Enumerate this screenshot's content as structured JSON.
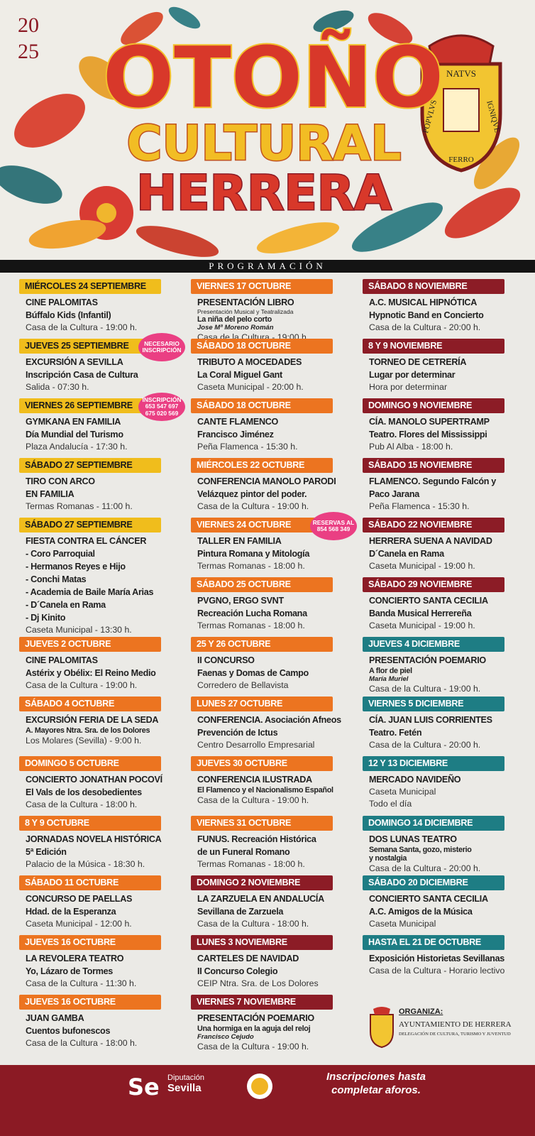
{
  "header": {
    "year": [
      "20",
      "25"
    ],
    "title": [
      "OTOÑO",
      "CULTURAL",
      "HERRERA"
    ],
    "motto": [
      "NATVS",
      "IGNIQVE",
      "FERRO",
      "POPVLVS"
    ]
  },
  "banner": "PROGRAMACIÓN",
  "palette": {
    "yellow": "#f0bd1c",
    "orange": "#ec7420",
    "red": "#8c1c26",
    "teal": "#1e7d84"
  },
  "columns": [
    [
      {
        "date": "MIÉRCOLES 24 SEPTIEMBRE",
        "color": "yellow",
        "lines": [
          {
            "text": "CINE PALOMITAS",
            "style": "b"
          },
          {
            "text": "Búffalo Kids (Infantil)",
            "style": "b"
          },
          {
            "text": "Casa de la Cultura - 19:00 h.",
            "style": "n"
          }
        ]
      },
      {
        "date": "JUEVES 25 SEPTIEMBRE",
        "color": "yellow",
        "badge": [
          "NECESARIO",
          "INSCRIPCIÓN"
        ],
        "lines": [
          {
            "text": "EXCURSIÓN A SEVILLA",
            "style": "b"
          },
          {
            "text": "Inscripción Casa de Cultura",
            "style": "b"
          },
          {
            "text": "Salida - 07:30 h.",
            "style": "n"
          }
        ]
      },
      {
        "date": "VIERNES 26 SEPTIEMBRE",
        "color": "yellow",
        "badge": [
          "INSCRIPCIÓN",
          "653 547 697",
          "675 020 569"
        ],
        "lines": [
          {
            "text": "GYMKANA EN FAMILIA",
            "style": "b"
          },
          {
            "text": "Día Mundial del Turismo",
            "style": "b"
          },
          {
            "text": "Plaza Andalucía - 17:30 h.",
            "style": "n"
          }
        ]
      },
      {
        "date": "SÁBADO 27 SEPTIEMBRE",
        "color": "yellow",
        "lines": [
          {
            "text": "TIRO CON ARCO",
            "style": "b"
          },
          {
            "text": "EN FAMILIA",
            "style": "b"
          },
          {
            "text": "Termas Romanas - 11:00 h.",
            "style": "n"
          }
        ]
      },
      {
        "date": "SÁBADO 27 SEPTIEMBRE",
        "color": "yellow",
        "lines": [
          {
            "text": "FIESTA CONTRA EL CÁNCER",
            "style": "b"
          },
          {
            "text": "- Coro Parroquial",
            "style": "b"
          },
          {
            "text": "- Hermanos Reyes e Hijo",
            "style": "b"
          },
          {
            "text": "- Conchi Matas",
            "style": "b"
          },
          {
            "text": "- Academia de Baile María Arias",
            "style": "b"
          },
          {
            "text": "- D´Canela en Rama",
            "style": "b"
          },
          {
            "text": "- Dj Kinito",
            "style": "b"
          },
          {
            "text": "Caseta Municipal - 13:30 h.",
            "style": "n"
          }
        ]
      },
      {
        "date": "JUEVES 2 OCTUBRE",
        "color": "orange",
        "lines": [
          {
            "text": "CINE PALOMITAS",
            "style": "b"
          },
          {
            "text": "Astérix y Obélix: El Reino Medio",
            "style": "b"
          },
          {
            "text": "Casa de la Cultura - 19:00 h.",
            "style": "n"
          }
        ]
      },
      {
        "date": "SÁBADO 4 OCTUBRE",
        "color": "orange",
        "lines": [
          {
            "text": "EXCURSIÓN FERIA DE LA SEDA",
            "style": "b"
          },
          {
            "text": "A. Mayores Ntra. Sra. de los Dolores",
            "style": "s"
          },
          {
            "text": "Los Molares (Sevilla) - 9:00 h.",
            "style": "n"
          }
        ]
      },
      {
        "date": "DOMINGO 5 OCTUBRE",
        "color": "orange",
        "lines": [
          {
            "text": "CONCIERTO JONATHAN POCOVÍ",
            "style": "b"
          },
          {
            "text": "El Vals de los desobedientes",
            "style": "b"
          },
          {
            "text": "Casa de la Cultura - 18:00 h.",
            "style": "n"
          }
        ]
      },
      {
        "date": "8 Y 9 OCTUBRE",
        "color": "orange",
        "lines": [
          {
            "text": "JORNADAS NOVELA HISTÓRICA",
            "style": "b"
          },
          {
            "text": "5ª Edición",
            "style": "b"
          },
          {
            "text": "Palacio de la Música - 18:30 h.",
            "style": "n"
          }
        ]
      },
      {
        "date": "SÁBADO 11 OCTUBRE",
        "color": "orange",
        "lines": [
          {
            "text": "CONCURSO DE PAELLAS",
            "style": "b"
          },
          {
            "text": "Hdad. de la Esperanza",
            "style": "b"
          },
          {
            "text": "Caseta Municipal - 12:00 h.",
            "style": "n"
          }
        ]
      },
      {
        "date": "JUEVES 16 OCTUBRE",
        "color": "orange",
        "lines": [
          {
            "text": "LA REVOLERA TEATRO",
            "style": "b"
          },
          {
            "text": "Yo, Lázaro de Tormes",
            "style": "b"
          },
          {
            "text": "Casa de la Cultura - 11:30 h.",
            "style": "n"
          }
        ]
      },
      {
        "date": "JUEVES 16 OCTUBRE",
        "color": "orange",
        "lines": [
          {
            "text": "JUAN GAMBA",
            "style": "b"
          },
          {
            "text": "Cuentos bufonescos",
            "style": "b"
          },
          {
            "text": "Casa de la Cultura - 18:00 h.",
            "style": "n"
          }
        ]
      }
    ],
    [
      {
        "date": "VIERNES 17 OCTUBRE",
        "color": "orange",
        "lines": [
          {
            "text": "PRESENTACIÓN LIBRO",
            "style": "b"
          },
          {
            "text": "Presentación Musical y Teatralizada",
            "style": "t"
          },
          {
            "text": "La niña del pelo corto",
            "style": "s"
          },
          {
            "text": "Jose Mª Moreno Román",
            "style": "i"
          },
          {
            "text": "Casa de la Cultura - 19:00 h.",
            "style": "n"
          }
        ]
      },
      {
        "date": "SÁBADO 18 OCTUBRE",
        "color": "orange",
        "lines": [
          {
            "text": "TRIBUTO A MOCEDADES",
            "style": "b"
          },
          {
            "text": "La Coral Miguel Gant",
            "style": "b"
          },
          {
            "text": "Caseta Municipal - 20:00 h.",
            "style": "n"
          }
        ]
      },
      {
        "date": "SÁBADO 18 OCTUBRE",
        "color": "orange",
        "lines": [
          {
            "text": "CANTE FLAMENCO",
            "style": "b"
          },
          {
            "text": "Francisco Jiménez",
            "style": "b"
          },
          {
            "text": "Peña Flamenca - 15:30 h.",
            "style": "n"
          }
        ]
      },
      {
        "date": "MIÉRCOLES 22 OCTUBRE",
        "color": "orange",
        "lines": [
          {
            "text": "CONFERENCIA MANOLO PARODI",
            "style": "b"
          },
          {
            "text": "Velázquez pintor del poder.",
            "style": "b"
          },
          {
            "text": "Casa de la Cultura - 19:00 h.",
            "style": "n"
          }
        ]
      },
      {
        "date": "VIERNES 24 OCTUBRE",
        "color": "orange",
        "badge": [
          "RESERVAS AL",
          "854 568 349"
        ],
        "lines": [
          {
            "text": "TALLER EN FAMILIA",
            "style": "b"
          },
          {
            "text": "Pintura Romana y Mitología",
            "style": "b"
          },
          {
            "text": "Termas Romanas - 18:00 h.",
            "style": "n"
          }
        ]
      },
      {
        "date": "SÁBADO 25 OCTUBRE",
        "color": "orange",
        "lines": [
          {
            "text": "PVGNO, ERGO SVNT",
            "style": "b"
          },
          {
            "text": "Recreación Lucha Romana",
            "style": "b"
          },
          {
            "text": "Termas Romanas - 18:00 h.",
            "style": "n"
          }
        ]
      },
      {
        "date": "25 Y 26 OCTUBRE",
        "color": "orange",
        "lines": [
          {
            "text": "II CONCURSO",
            "style": "b"
          },
          {
            "text": "Faenas y Domas de Campo",
            "style": "b"
          },
          {
            "text": "Corredero de Bellavista",
            "style": "n"
          }
        ]
      },
      {
        "date": "LUNES 27 OCTUBRE",
        "color": "orange",
        "lines": [
          {
            "text": "CONFERENCIA. Asociación Afneos",
            "style": "b"
          },
          {
            "text": "Prevención de Ictus",
            "style": "b"
          },
          {
            "text": "Centro Desarrollo Empresarial",
            "style": "n"
          }
        ]
      },
      {
        "date": "JUEVES 30 OCTUBRE",
        "color": "orange",
        "lines": [
          {
            "text": "CONFERENCIA ILUSTRADA",
            "style": "b"
          },
          {
            "text": "El Flamenco y el Nacionalismo Español",
            "style": "s"
          },
          {
            "text": "Casa de la Cultura - 19:00 h.",
            "style": "n"
          }
        ]
      },
      {
        "date": "VIERNES 31 OCTUBRE",
        "color": "orange",
        "lines": [
          {
            "text": "FUNUS. Recreación Histórica",
            "style": "b"
          },
          {
            "text": "de un Funeral Romano",
            "style": "b"
          },
          {
            "text": "Termas Romanas - 18:00 h.",
            "style": "n"
          }
        ]
      },
      {
        "date": "DOMINGO 2 NOVIEMBRE",
        "color": "red",
        "lines": [
          {
            "text": "LA ZARZUELA EN ANDALUCÍA",
            "style": "b"
          },
          {
            "text": "Sevillana de Zarzuela",
            "style": "b"
          },
          {
            "text": "Casa de la Cultura - 18:00 h.",
            "style": "n"
          }
        ]
      },
      {
        "date": "LUNES 3 NOVIEMBRE",
        "color": "red",
        "lines": [
          {
            "text": "CARTELES DE NAVIDAD",
            "style": "b"
          },
          {
            "text": "II Concurso Colegio",
            "style": "b"
          },
          {
            "text": "CEIP Ntra. Sra. de Los Dolores",
            "style": "n"
          }
        ]
      },
      {
        "date": "VIERNES 7 NOVIEMBRE",
        "color": "red",
        "lines": [
          {
            "text": "PRESENTACIÓN POEMARIO",
            "style": "b"
          },
          {
            "text": "Una hormiga en la aguja del reloj",
            "style": "s"
          },
          {
            "text": "Francisco Cejudo",
            "style": "i"
          },
          {
            "text": "Casa de la Cultura - 19:00 h.",
            "style": "n"
          }
        ]
      }
    ],
    [
      {
        "date": "SÁBADO 8 NOVIEMBRE",
        "color": "red",
        "lines": [
          {
            "text": "A.C. MUSICAL HIPNÓTICA",
            "style": "b"
          },
          {
            "text": "Hypnotic Band en Concierto",
            "style": "b"
          },
          {
            "text": "Casa de la Cultura - 20:00 h.",
            "style": "n"
          }
        ]
      },
      {
        "date": "8 Y 9 NOVIEMBRE",
        "color": "red",
        "lines": [
          {
            "text": "TORNEO DE CETRERÍA",
            "style": "b"
          },
          {
            "text": "Lugar por determinar",
            "style": "b"
          },
          {
            "text": "Hora por determinar",
            "style": "n"
          }
        ]
      },
      {
        "date": "DOMINGO 9 NOVIEMBRE",
        "color": "red",
        "lines": [
          {
            "text": "CÍA. MANOLO SUPERTRAMP",
            "style": "b"
          },
          {
            "text": "Teatro. Flores del Mississippi",
            "style": "b"
          },
          {
            "text": "Pub Al Alba - 18:00 h.",
            "style": "n"
          }
        ]
      },
      {
        "date": "SÁBADO 15 NOVIEMBRE",
        "color": "red",
        "lines": [
          {
            "text": "FLAMENCO. Segundo Falcón y",
            "style": "b"
          },
          {
            "text": "Paco Jarana",
            "style": "b"
          },
          {
            "text": "Peña Flamenca - 15:30 h.",
            "style": "n"
          }
        ]
      },
      {
        "date": "SÁBADO 22 NOVIEMBRE",
        "color": "red",
        "lines": [
          {
            "text": "HERRERA SUENA A NAVIDAD",
            "style": "b"
          },
          {
            "text": "D´Canela en Rama",
            "style": "b"
          },
          {
            "text": "Caseta Municipal - 19:00 h.",
            "style": "n"
          }
        ]
      },
      {
        "date": "SÁBADO 29 NOVIEMBRE",
        "color": "red",
        "lines": [
          {
            "text": "CONCIERTO SANTA CECILIA",
            "style": "b"
          },
          {
            "text": "Banda Musical Herrereña",
            "style": "b"
          },
          {
            "text": "Caseta Municipal - 19:00 h.",
            "style": "n"
          }
        ]
      },
      {
        "date": "JUEVES 4 DICIEMBRE",
        "color": "teal",
        "lines": [
          {
            "text": "PRESENTACIÓN POEMARIO",
            "style": "b"
          },
          {
            "text": "A flor de piel",
            "style": "s"
          },
          {
            "text": "María Muriel",
            "style": "i"
          },
          {
            "text": "Casa de la Cultura - 19:00 h.",
            "style": "n"
          }
        ]
      },
      {
        "date": "VIERNES 5 DICIEMBRE",
        "color": "teal",
        "lines": [
          {
            "text": "CÍA. JUAN LUIS CORRIENTES",
            "style": "b"
          },
          {
            "text": "Teatro. Fetén",
            "style": "b"
          },
          {
            "text": "Casa de la Cultura - 20:00 h.",
            "style": "n"
          }
        ]
      },
      {
        "date": "12 Y 13 DICIEMBRE",
        "color": "teal",
        "lines": [
          {
            "text": "MERCADO NAVIDEÑO",
            "style": "b"
          },
          {
            "text": "Caseta Municipal",
            "style": "n"
          },
          {
            "text": "Todo el día",
            "style": "n"
          }
        ]
      },
      {
        "date": "DOMINGO 14 DICIEMBRE",
        "color": "teal",
        "lines": [
          {
            "text": "DOS LUNAS TEATRO",
            "style": "b"
          },
          {
            "text": "Semana Santa, gozo, misterio",
            "style": "s"
          },
          {
            "text": "y nostalgia",
            "style": "s"
          },
          {
            "text": "Casa de la Cultura - 20:00 h.",
            "style": "n"
          }
        ]
      },
      {
        "date": "SÁBADO 20 DICIEMBRE",
        "color": "teal",
        "lines": [
          {
            "text": "CONCIERTO SANTA CECILIA",
            "style": "b"
          },
          {
            "text": "A.C. Amigos de la Música",
            "style": "b"
          },
          {
            "text": "Caseta Municipal",
            "style": "n"
          }
        ]
      },
      {
        "date": "HASTA EL 21 DE OCTUBRE",
        "color": "teal",
        "lines": [
          {
            "text": "Exposición Historietas Sevillanas",
            "style": "b"
          },
          {
            "text": "Casa de la Cultura - Horario lectivo",
            "style": "n"
          }
        ]
      }
    ]
  ],
  "organizer": {
    "label": "ORGANIZA:",
    "name": "AYUNTAMIENTO DE HERRERA",
    "department": "DELEGACIÓN DE CULTURA, TURISMO Y JUVENTUD"
  },
  "footer": {
    "sponsor": [
      "Diputación",
      "Sevilla"
    ],
    "note": [
      "Inscripciones hasta",
      "completar aforos."
    ]
  }
}
